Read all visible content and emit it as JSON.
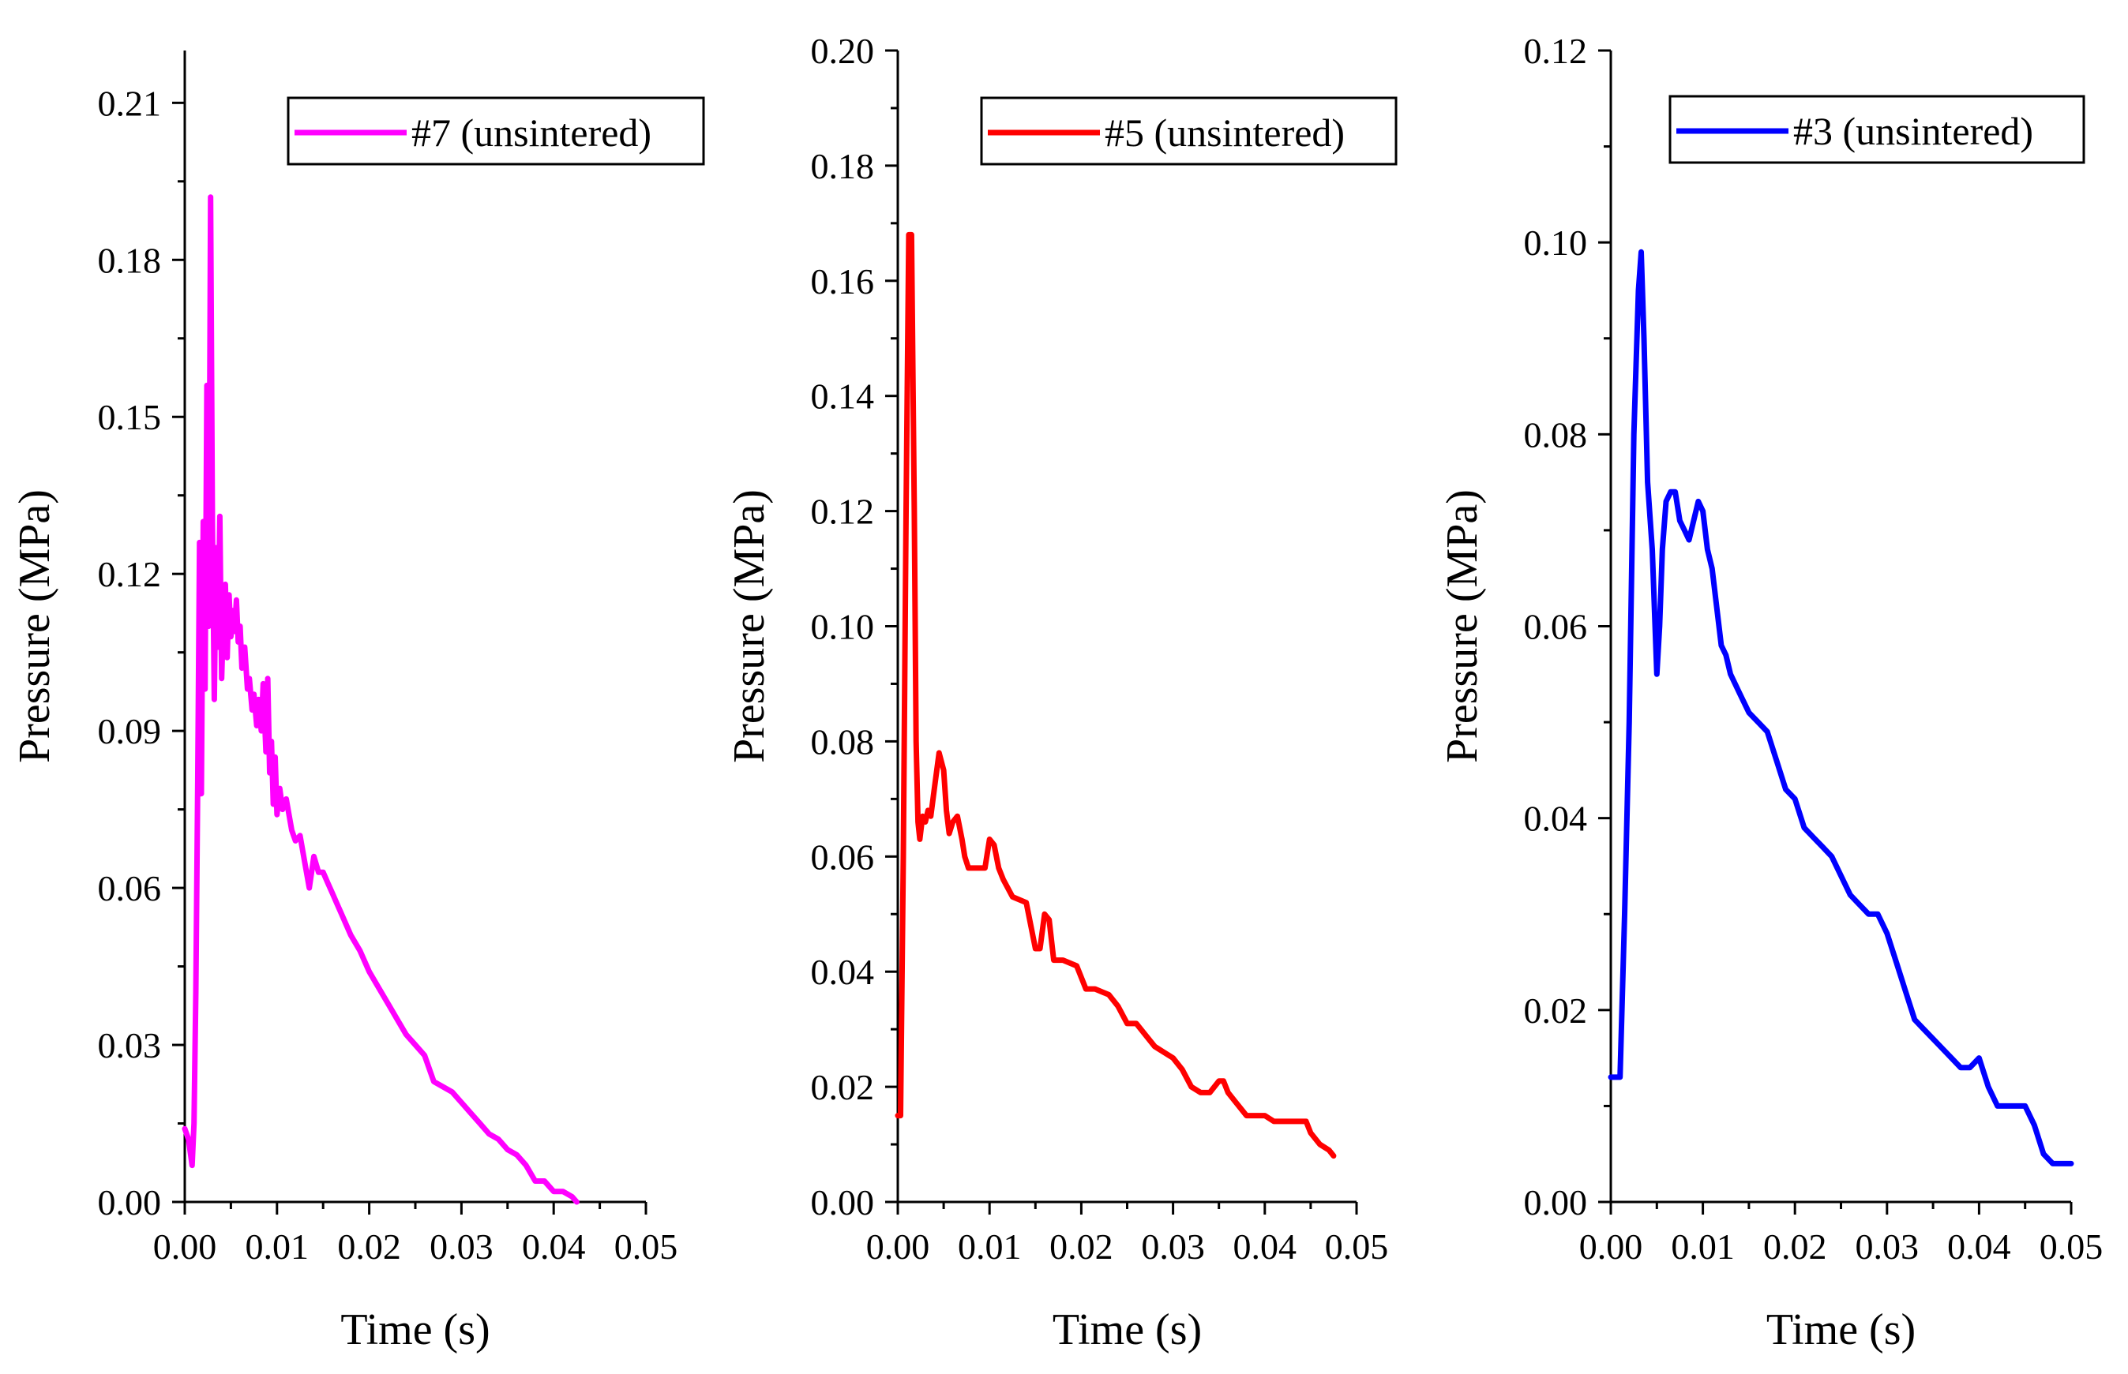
{
  "chart_data": [
    {
      "type": "line",
      "title": "",
      "xlabel": "Time (s)",
      "ylabel": "Pressure (MPa)",
      "xlim": [
        0,
        0.05
      ],
      "ylim": [
        0,
        0.22
      ],
      "xticks": [
        "0.00",
        "0.01",
        "0.02",
        "0.03",
        "0.04",
        "0.05"
      ],
      "yticks": [
        "0.00",
        "0.03",
        "0.06",
        "0.09",
        "0.12",
        "0.15",
        "0.18",
        "0.21"
      ],
      "xtick_values": [
        0,
        0.01,
        0.02,
        0.03,
        0.04,
        0.05
      ],
      "ytick_values": [
        0,
        0.03,
        0.06,
        0.09,
        0.12,
        0.15,
        0.18,
        0.21
      ],
      "grid": false,
      "legend": "top-right",
      "series": [
        {
          "name": "#7 (unsintered)",
          "color": "#FF00FF",
          "x": [
            0.0,
            0.0004,
            0.0008,
            0.001,
            0.0012,
            0.0014,
            0.0016,
            0.0018,
            0.002,
            0.0022,
            0.0024,
            0.0026,
            0.0028,
            0.003,
            0.0032,
            0.0034,
            0.0036,
            0.0038,
            0.004,
            0.0042,
            0.0044,
            0.0046,
            0.0048,
            0.005,
            0.0052,
            0.0054,
            0.0056,
            0.0058,
            0.006,
            0.0062,
            0.0065,
            0.0068,
            0.007,
            0.0073,
            0.0075,
            0.0078,
            0.008,
            0.0083,
            0.0085,
            0.0088,
            0.009,
            0.0092,
            0.0094,
            0.0096,
            0.0098,
            0.01,
            0.0103,
            0.0106,
            0.011,
            0.0113,
            0.0116,
            0.012,
            0.0125,
            0.013,
            0.0135,
            0.014,
            0.0145,
            0.015,
            0.0155,
            0.016,
            0.0165,
            0.017,
            0.018,
            0.019,
            0.02,
            0.021,
            0.022,
            0.023,
            0.024,
            0.025,
            0.026,
            0.027,
            0.028,
            0.029,
            0.03,
            0.031,
            0.032,
            0.033,
            0.034,
            0.035,
            0.036,
            0.037,
            0.038,
            0.039,
            0.04,
            0.041,
            0.042,
            0.0425
          ],
          "y": [
            0.014,
            0.012,
            0.007,
            0.015,
            0.04,
            0.08,
            0.126,
            0.078,
            0.13,
            0.098,
            0.156,
            0.11,
            0.192,
            0.13,
            0.096,
            0.125,
            0.106,
            0.131,
            0.1,
            0.112,
            0.118,
            0.104,
            0.116,
            0.108,
            0.113,
            0.109,
            0.115,
            0.107,
            0.11,
            0.102,
            0.106,
            0.098,
            0.1,
            0.094,
            0.097,
            0.091,
            0.096,
            0.09,
            0.099,
            0.086,
            0.1,
            0.082,
            0.088,
            0.076,
            0.085,
            0.074,
            0.079,
            0.075,
            0.077,
            0.074,
            0.071,
            0.069,
            0.07,
            0.065,
            0.06,
            0.066,
            0.063,
            0.063,
            0.061,
            0.059,
            0.057,
            0.055,
            0.051,
            0.048,
            0.044,
            0.041,
            0.038,
            0.035,
            0.032,
            0.03,
            0.028,
            0.023,
            0.022,
            0.021,
            0.019,
            0.017,
            0.015,
            0.013,
            0.012,
            0.01,
            0.009,
            0.007,
            0.004,
            0.004,
            0.002,
            0.002,
            0.001,
            0.0
          ]
        }
      ]
    },
    {
      "type": "line",
      "title": "",
      "xlabel": "Time (s)",
      "ylabel": "Pressure (MPa)",
      "xlim": [
        0,
        0.05
      ],
      "ylim": [
        0,
        0.2
      ],
      "xticks": [
        "0.00",
        "0.01",
        "0.02",
        "0.03",
        "0.04",
        "0.05"
      ],
      "yticks": [
        "0.00",
        "0.02",
        "0.04",
        "0.06",
        "0.08",
        "0.10",
        "0.12",
        "0.14",
        "0.16",
        "0.18",
        "0.20"
      ],
      "xtick_values": [
        0,
        0.01,
        0.02,
        0.03,
        0.04,
        0.05
      ],
      "ytick_values": [
        0,
        0.02,
        0.04,
        0.06,
        0.08,
        0.1,
        0.12,
        0.14,
        0.16,
        0.18,
        0.2
      ],
      "grid": false,
      "legend": "top-right",
      "series": [
        {
          "name": "#5 (unsintered)",
          "color": "#FF0000",
          "x": [
            0.0,
            0.0003,
            0.0006,
            0.0009,
            0.0012,
            0.0015,
            0.0018,
            0.002,
            0.0022,
            0.0024,
            0.0027,
            0.003,
            0.0033,
            0.0036,
            0.004,
            0.0045,
            0.005,
            0.0053,
            0.0056,
            0.006,
            0.0065,
            0.007,
            0.0073,
            0.0077,
            0.0085,
            0.0095,
            0.01,
            0.0105,
            0.011,
            0.0115,
            0.0125,
            0.014,
            0.015,
            0.0155,
            0.016,
            0.0165,
            0.017,
            0.018,
            0.0195,
            0.0205,
            0.0215,
            0.023,
            0.024,
            0.025,
            0.026,
            0.027,
            0.028,
            0.029,
            0.03,
            0.031,
            0.032,
            0.033,
            0.034,
            0.035,
            0.0355,
            0.036,
            0.037,
            0.038,
            0.039,
            0.04,
            0.041,
            0.042,
            0.043,
            0.044,
            0.0445,
            0.045,
            0.046,
            0.047,
            0.0475
          ],
          "y": [
            0.015,
            0.015,
            0.06,
            0.12,
            0.168,
            0.168,
            0.12,
            0.08,
            0.066,
            0.063,
            0.067,
            0.066,
            0.068,
            0.067,
            0.072,
            0.078,
            0.075,
            0.068,
            0.064,
            0.066,
            0.067,
            0.063,
            0.06,
            0.058,
            0.058,
            0.058,
            0.063,
            0.062,
            0.058,
            0.056,
            0.053,
            0.052,
            0.044,
            0.044,
            0.05,
            0.049,
            0.042,
            0.042,
            0.041,
            0.037,
            0.037,
            0.036,
            0.034,
            0.031,
            0.031,
            0.029,
            0.027,
            0.026,
            0.025,
            0.023,
            0.02,
            0.019,
            0.019,
            0.021,
            0.021,
            0.019,
            0.017,
            0.015,
            0.015,
            0.015,
            0.014,
            0.014,
            0.014,
            0.014,
            0.014,
            0.012,
            0.01,
            0.009,
            0.008
          ]
        }
      ]
    },
    {
      "type": "line",
      "title": "",
      "xlabel": "Time (s)",
      "ylabel": "Pressure (MPa)",
      "xlim": [
        0,
        0.05
      ],
      "ylim": [
        0,
        0.12
      ],
      "xticks": [
        "0.00",
        "0.01",
        "0.02",
        "0.03",
        "0.04",
        "0.05"
      ],
      "yticks": [
        "0.00",
        "0.02",
        "0.04",
        "0.06",
        "0.08",
        "0.10",
        "0.12"
      ],
      "xtick_values": [
        0,
        0.01,
        0.02,
        0.03,
        0.04,
        0.05
      ],
      "ytick_values": [
        0,
        0.02,
        0.04,
        0.06,
        0.08,
        0.1,
        0.12
      ],
      "grid": false,
      "legend": "top-right",
      "series": [
        {
          "name": "#3 (unsintered)",
          "color": "#0000FF",
          "x": [
            0.0,
            0.0005,
            0.001,
            0.0015,
            0.002,
            0.0025,
            0.003,
            0.0033,
            0.0036,
            0.004,
            0.0045,
            0.005,
            0.0053,
            0.0056,
            0.006,
            0.0065,
            0.007,
            0.0075,
            0.008,
            0.0085,
            0.009,
            0.0095,
            0.01,
            0.0105,
            0.011,
            0.0115,
            0.012,
            0.0125,
            0.013,
            0.014,
            0.015,
            0.016,
            0.017,
            0.018,
            0.019,
            0.02,
            0.021,
            0.022,
            0.023,
            0.024,
            0.025,
            0.026,
            0.027,
            0.028,
            0.029,
            0.03,
            0.031,
            0.032,
            0.033,
            0.034,
            0.035,
            0.036,
            0.037,
            0.038,
            0.039,
            0.04,
            0.041,
            0.042,
            0.043,
            0.044,
            0.045,
            0.046,
            0.047,
            0.048,
            0.049,
            0.05
          ],
          "y": [
            0.013,
            0.013,
            0.013,
            0.03,
            0.05,
            0.08,
            0.095,
            0.099,
            0.09,
            0.075,
            0.068,
            0.055,
            0.06,
            0.068,
            0.073,
            0.074,
            0.074,
            0.071,
            0.07,
            0.069,
            0.071,
            0.073,
            0.072,
            0.068,
            0.066,
            0.062,
            0.058,
            0.057,
            0.055,
            0.053,
            0.051,
            0.05,
            0.049,
            0.046,
            0.043,
            0.042,
            0.039,
            0.038,
            0.037,
            0.036,
            0.034,
            0.032,
            0.031,
            0.03,
            0.03,
            0.028,
            0.025,
            0.022,
            0.019,
            0.018,
            0.017,
            0.016,
            0.015,
            0.014,
            0.014,
            0.015,
            0.012,
            0.01,
            0.01,
            0.01,
            0.01,
            0.008,
            0.005,
            0.004,
            0.004,
            0.004
          ]
        }
      ]
    }
  ]
}
